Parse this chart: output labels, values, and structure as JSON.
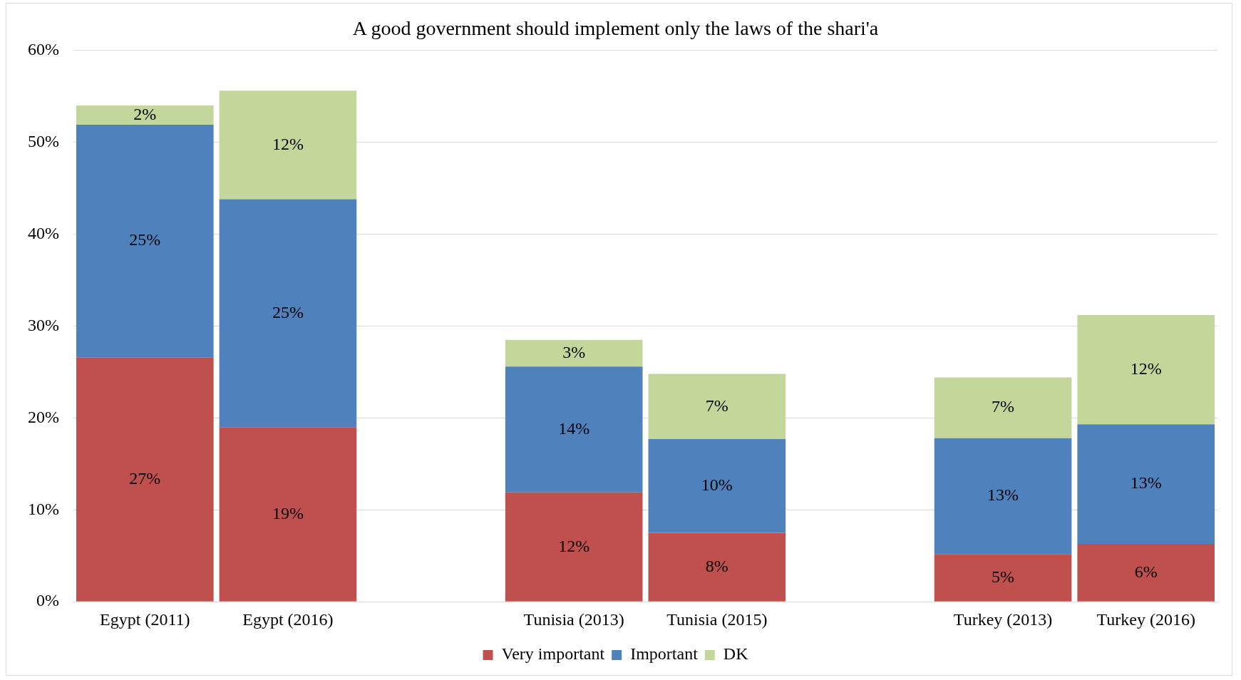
{
  "chart_data": {
    "type": "bar",
    "title": "A good government should implement only the laws of the shari'a",
    "stacked": true,
    "categories": [
      "Egypt (2011)",
      "Egypt (2016)",
      null,
      "Tunisia (2013)",
      "Tunisia (2015)",
      null,
      "Turkey (2013)",
      "Turkey (2016)"
    ],
    "series": [
      {
        "name": "Very important",
        "color": "#c0504d",
        "values": [
          26.6,
          19.0,
          null,
          11.9,
          7.5,
          null,
          5.2,
          6.3
        ],
        "value_labels": [
          "27%",
          "19%",
          null,
          "12%",
          "8%",
          null,
          "5%",
          "6%"
        ]
      },
      {
        "name": "Important",
        "color": "#4f81bd",
        "values": [
          25.3,
          24.8,
          null,
          13.7,
          10.2,
          null,
          12.6,
          13.0
        ],
        "value_labels": [
          "25%",
          "25%",
          null,
          "14%",
          "10%",
          null,
          "13%",
          "13%"
        ]
      },
      {
        "name": "DK",
        "color": "#c4d79b",
        "values": [
          2.1,
          11.8,
          null,
          2.9,
          7.1,
          null,
          6.6,
          11.9
        ],
        "value_labels": [
          "2%",
          "12%",
          null,
          "3%",
          "7%",
          null,
          "7%",
          "12%"
        ]
      }
    ],
    "ylim": [
      0,
      60
    ],
    "yticks": [
      {
        "value": 0,
        "label": "0%"
      },
      {
        "value": 10,
        "label": "10%"
      },
      {
        "value": 20,
        "label": "20%"
      },
      {
        "value": 30,
        "label": "30%"
      },
      {
        "value": 40,
        "label": "40%"
      },
      {
        "value": 50,
        "label": "50%"
      },
      {
        "value": 60,
        "label": "60%"
      }
    ],
    "grid": "y",
    "legend": "bottom"
  }
}
